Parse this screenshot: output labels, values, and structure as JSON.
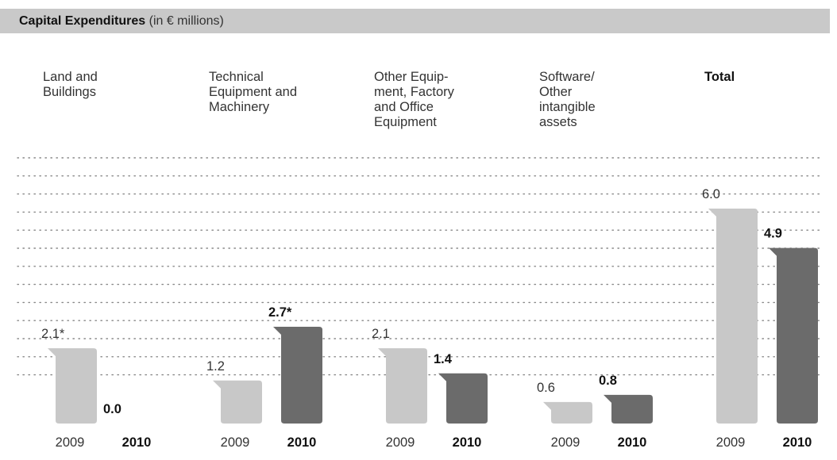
{
  "header": {
    "title": "Capital Expenditures",
    "subtitle": "(in € millions)"
  },
  "colors": {
    "header_bg": "#c9c9c9",
    "bar_2009": "#c8c8c8",
    "bar_2010": "#6b6b6b",
    "gridline": "#888888"
  },
  "chart_data": {
    "type": "bar",
    "title": "Capital Expenditures (in € millions)",
    "categories": [
      "Land and\nBuildings",
      "Technical\nEquipment and\nMachinery",
      "Other Equip-\nment, Factory\nand Office\nEquipment",
      "Software/\nOther\nintangible\nassets",
      "Total"
    ],
    "series": [
      {
        "name": "2009",
        "values": [
          2.1,
          1.2,
          2.1,
          0.6,
          6.0
        ],
        "labels": [
          "2.1*",
          "1.2",
          "2.1",
          "0.6",
          "6.0"
        ]
      },
      {
        "name": "2010",
        "values": [
          0.0,
          2.7,
          1.4,
          0.8,
          4.9
        ],
        "labels": [
          "0.0",
          "2.7*",
          "1.4",
          "0.8",
          "4.9"
        ]
      }
    ],
    "ylim": [
      0,
      6.0
    ],
    "grid": "dotted horizontal",
    "legend": "none"
  }
}
